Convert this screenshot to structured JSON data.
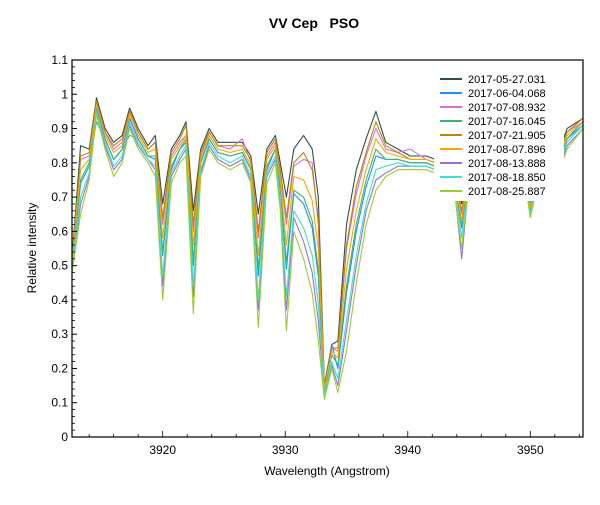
{
  "chart_data": {
    "type": "line",
    "title": "VV Cep   PSO",
    "xlabel": "Wavelength (Angstrom)",
    "ylabel": "Relative intensity",
    "xlim": [
      3912.6,
      3954.3
    ],
    "ylim": [
      0,
      1.1
    ],
    "xticks": [
      3920,
      3930,
      3940,
      3950
    ],
    "xtick_labels": [
      "3920",
      "3930",
      "3940",
      "3950"
    ],
    "yticks": [
      0,
      0.1,
      0.2,
      0.3,
      0.4,
      0.5,
      0.6,
      0.7,
      0.8,
      0.9,
      1,
      1.1
    ],
    "ytick_labels": [
      "0",
      "0.1",
      "0.2",
      "0.3",
      "0.4",
      "0.5",
      "0.6",
      "0.7",
      "0.8",
      "0.9",
      "1",
      "1.1"
    ],
    "grid": false,
    "legend_position": "top-right",
    "x": [
      3912.6,
      3913.3,
      3914.0,
      3914.6,
      3915.3,
      3916.0,
      3916.7,
      3917.3,
      3918.0,
      3918.8,
      3919.4,
      3920.0,
      3920.7,
      3921.4,
      3921.9,
      3922.5,
      3923.1,
      3923.8,
      3924.5,
      3925.5,
      3926.5,
      3927.2,
      3927.8,
      3928.5,
      3929.2,
      3929.6,
      3930.1,
      3930.7,
      3931.5,
      3932.2,
      3932.7,
      3933.2,
      3933.8,
      3934.3,
      3935.0,
      3935.8,
      3936.6,
      3937.4,
      3938.2,
      3939.2,
      3940.2,
      3941.5,
      3943.0,
      3943.8,
      3944.4,
      3945.0,
      3947.0,
      3949.5,
      3950.0,
      3950.5,
      3952.0,
      3953.0,
      3954.3
    ],
    "series": [
      {
        "name": "2017-05-27.031",
        "color": "#2f4f4f",
        "values": [
          0.52,
          0.85,
          0.84,
          0.99,
          0.9,
          0.86,
          0.88,
          0.96,
          0.9,
          0.85,
          0.88,
          0.68,
          0.84,
          0.88,
          0.92,
          0.66,
          0.84,
          0.9,
          0.86,
          0.86,
          0.86,
          0.82,
          0.65,
          0.84,
          0.88,
          0.8,
          0.7,
          0.84,
          0.88,
          0.84,
          0.7,
          0.15,
          0.27,
          0.28,
          0.62,
          0.78,
          0.87,
          0.95,
          0.86,
          0.84,
          0.82,
          0.82,
          0.8,
          0.78,
          0.68,
          0.8,
          0.82,
          0.82,
          0.68,
          0.78,
          0.8,
          0.9,
          0.93
        ]
      },
      {
        "name": "2017-06-04.068",
        "color": "#1e90ff",
        "values": [
          0.5,
          0.74,
          0.79,
          0.96,
          0.87,
          0.81,
          0.84,
          0.93,
          0.87,
          0.82,
          0.81,
          0.53,
          0.78,
          0.84,
          0.86,
          0.5,
          0.8,
          0.87,
          0.83,
          0.82,
          0.83,
          0.78,
          0.47,
          0.78,
          0.84,
          0.72,
          0.49,
          0.71,
          0.68,
          0.61,
          0.47,
          0.13,
          0.27,
          0.2,
          0.42,
          0.6,
          0.73,
          0.82,
          0.81,
          0.81,
          0.8,
          0.8,
          0.78,
          0.75,
          0.61,
          0.77,
          0.79,
          0.79,
          0.66,
          0.75,
          0.77,
          0.87,
          0.91
        ]
      },
      {
        "name": "2017-07-08.932",
        "color": "#da70d6",
        "values": [
          0.51,
          0.81,
          0.82,
          0.98,
          0.89,
          0.84,
          0.86,
          0.95,
          0.89,
          0.84,
          0.86,
          0.62,
          0.82,
          0.86,
          0.88,
          0.6,
          0.82,
          0.89,
          0.85,
          0.84,
          0.87,
          0.8,
          0.58,
          0.82,
          0.86,
          0.77,
          0.62,
          0.79,
          0.81,
          0.8,
          0.62,
          0.14,
          0.26,
          0.25,
          0.55,
          0.71,
          0.82,
          0.9,
          0.84,
          0.83,
          0.84,
          0.81,
          0.79,
          0.77,
          0.65,
          0.79,
          0.81,
          0.81,
          0.67,
          0.77,
          0.79,
          0.89,
          0.92
        ]
      },
      {
        "name": "2017-07-16.045",
        "color": "#3cb371",
        "values": [
          0.5,
          0.75,
          0.8,
          0.92,
          0.87,
          0.81,
          0.84,
          0.88,
          0.87,
          0.82,
          0.82,
          0.54,
          0.79,
          0.84,
          0.87,
          0.51,
          0.8,
          0.87,
          0.83,
          0.82,
          0.83,
          0.78,
          0.49,
          0.79,
          0.84,
          0.73,
          0.51,
          0.72,
          0.7,
          0.63,
          0.49,
          0.13,
          0.24,
          0.21,
          0.44,
          0.62,
          0.75,
          0.84,
          0.81,
          0.81,
          0.8,
          0.8,
          0.78,
          0.75,
          0.62,
          0.77,
          0.79,
          0.79,
          0.66,
          0.75,
          0.77,
          0.87,
          0.92
        ]
      },
      {
        "name": "2017-07-21.905",
        "color": "#b8860b",
        "values": [
          0.51,
          0.82,
          0.83,
          0.98,
          0.89,
          0.85,
          0.87,
          0.95,
          0.89,
          0.84,
          0.86,
          0.64,
          0.83,
          0.87,
          0.91,
          0.62,
          0.83,
          0.89,
          0.85,
          0.85,
          0.85,
          0.81,
          0.6,
          0.83,
          0.87,
          0.78,
          0.64,
          0.8,
          0.83,
          0.78,
          0.64,
          0.14,
          0.26,
          0.26,
          0.56,
          0.73,
          0.83,
          0.92,
          0.85,
          0.83,
          0.81,
          0.81,
          0.79,
          0.77,
          0.66,
          0.79,
          0.81,
          0.81,
          0.67,
          0.77,
          0.79,
          0.89,
          0.93
        ]
      },
      {
        "name": "2017-08-07.896",
        "color": "#ffa500",
        "values": [
          0.51,
          0.78,
          0.81,
          0.97,
          0.88,
          0.83,
          0.85,
          0.94,
          0.88,
          0.83,
          0.84,
          0.58,
          0.81,
          0.85,
          0.88,
          0.56,
          0.81,
          0.88,
          0.84,
          0.83,
          0.84,
          0.79,
          0.53,
          0.81,
          0.85,
          0.75,
          0.56,
          0.76,
          0.75,
          0.69,
          0.55,
          0.14,
          0.25,
          0.23,
          0.49,
          0.66,
          0.78,
          0.87,
          0.83,
          0.82,
          0.81,
          0.81,
          0.79,
          0.76,
          0.63,
          0.78,
          0.8,
          0.8,
          0.67,
          0.76,
          0.78,
          0.88,
          0.92
        ]
      },
      {
        "name": "2017-08-13.888",
        "color": "#9370db",
        "values": [
          0.49,
          0.68,
          0.76,
          0.95,
          0.85,
          0.78,
          0.81,
          0.91,
          0.85,
          0.81,
          0.78,
          0.44,
          0.76,
          0.81,
          0.84,
          0.41,
          0.77,
          0.85,
          0.81,
          0.79,
          0.81,
          0.75,
          0.37,
          0.76,
          0.81,
          0.68,
          0.37,
          0.64,
          0.57,
          0.48,
          0.34,
          0.12,
          0.21,
          0.15,
          0.31,
          0.5,
          0.66,
          0.75,
          0.77,
          0.79,
          0.79,
          0.79,
          0.77,
          0.73,
          0.52,
          0.75,
          0.77,
          0.77,
          0.65,
          0.73,
          0.75,
          0.85,
          0.9
        ]
      },
      {
        "name": "2017-08-18.850",
        "color": "#40e0d0",
        "values": [
          0.49,
          0.7,
          0.77,
          0.95,
          0.86,
          0.79,
          0.82,
          0.92,
          0.86,
          0.81,
          0.79,
          0.47,
          0.77,
          0.82,
          0.85,
          0.44,
          0.78,
          0.86,
          0.82,
          0.8,
          0.82,
          0.76,
          0.4,
          0.77,
          0.82,
          0.7,
          0.41,
          0.66,
          0.61,
          0.53,
          0.39,
          0.12,
          0.22,
          0.17,
          0.34,
          0.53,
          0.68,
          0.78,
          0.79,
          0.8,
          0.79,
          0.79,
          0.77,
          0.74,
          0.58,
          0.76,
          0.78,
          0.78,
          0.65,
          0.74,
          0.76,
          0.86,
          0.91
        ]
      },
      {
        "name": "2017-08-25.887",
        "color": "#9acd32",
        "values": [
          0.48,
          0.65,
          0.75,
          0.94,
          0.84,
          0.76,
          0.8,
          0.9,
          0.84,
          0.8,
          0.76,
          0.4,
          0.74,
          0.8,
          0.82,
          0.36,
          0.76,
          0.84,
          0.8,
          0.78,
          0.8,
          0.74,
          0.32,
          0.74,
          0.8,
          0.66,
          0.31,
          0.6,
          0.52,
          0.42,
          0.28,
          0.11,
          0.2,
          0.13,
          0.25,
          0.45,
          0.62,
          0.72,
          0.76,
          0.78,
          0.78,
          0.78,
          0.76,
          0.72,
          0.55,
          0.74,
          0.76,
          0.76,
          0.64,
          0.72,
          0.74,
          0.84,
          0.9
        ]
      }
    ]
  }
}
